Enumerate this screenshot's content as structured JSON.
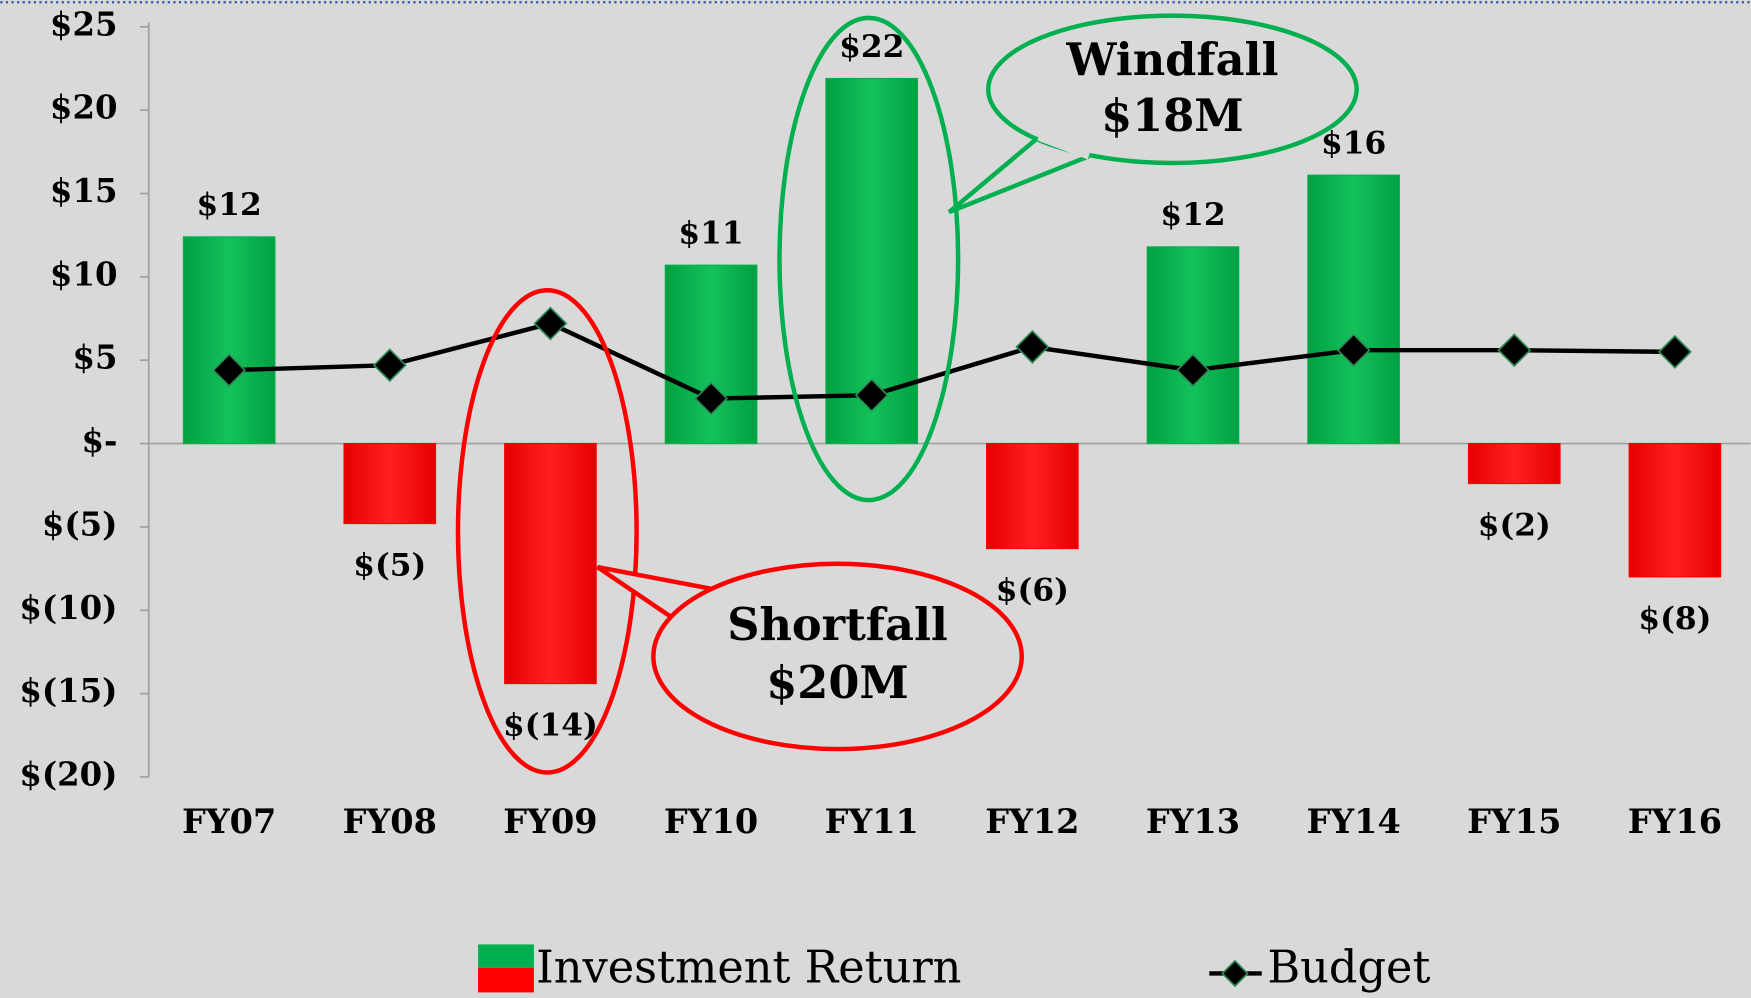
{
  "chart_data": {
    "type": "bar-line",
    "categories": [
      "FY07",
      "FY08",
      "FY09",
      "FY10",
      "FY11",
      "FY12",
      "FY13",
      "FY14",
      "FY15",
      "FY16"
    ],
    "series": [
      {
        "name": "Investment Return",
        "type": "bar",
        "color": "#00b050",
        "negative_color": "#ff0000",
        "values": [
          12.4,
          -4.8,
          -14.4,
          10.7,
          21.9,
          -6.3,
          11.8,
          16.1,
          -2.4,
          -8.0
        ],
        "value_labels": [
          "$12",
          "$(5)",
          "$(14)",
          "$11",
          "$22",
          "$(6)",
          "$12",
          "$16",
          "$(2)",
          "$(8)"
        ]
      },
      {
        "name": "Budget",
        "type": "line",
        "color": "#000000",
        "values": [
          4.4,
          4.7,
          7.2,
          2.7,
          2.9,
          5.8,
          4.4,
          5.6,
          5.6,
          5.5
        ]
      }
    ],
    "ylim": [
      -20,
      25
    ],
    "yticks": [
      {
        "value": 25,
        "label": "$25"
      },
      {
        "value": 20,
        "label": "$20"
      },
      {
        "value": 15,
        "label": "$15"
      },
      {
        "value": 10,
        "label": "$10"
      },
      {
        "value": 5,
        "label": "$5"
      },
      {
        "value": 0,
        "label": "$-"
      },
      {
        "value": -5,
        "label": "$(5)"
      },
      {
        "value": -10,
        "label": "$(10)"
      },
      {
        "value": -15,
        "label": "$(15)"
      },
      {
        "value": -20,
        "label": "$(20)"
      }
    ],
    "annotations": [
      {
        "text": [
          "Windfall",
          "$18M"
        ]
      },
      {
        "text": [
          "Shortfall",
          "$20M"
        ]
      }
    ],
    "legend": "bottom"
  }
}
